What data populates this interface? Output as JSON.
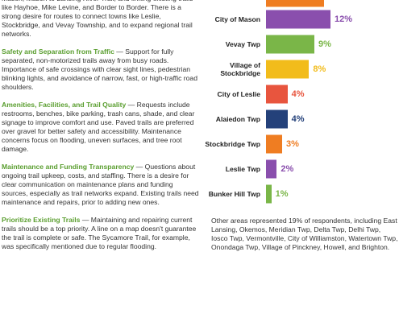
{
  "document": {
    "intro": "Mason, Mason to Lansing River Trail, and linking existing trails like Hayhoe, Mike Levine, and Border to Border. There is a strong desire for routes to connect towns like Leslie, Stockbridge, and Vevay Township, and to expand regional trail networks.",
    "sections": [
      {
        "heading": "Safety and Separation from Traffic",
        "body": " — Support for fully separated, non-motorized trails away from busy roads. Importance of safe crossings with clear sight lines, pedestrian blinking lights, and avoidance of narrow, fast, or high-traffic road shoulders."
      },
      {
        "heading": "Amenities, Facilities, and Trail Quality",
        "body": " — Requests include restrooms, benches, bike parking, trash cans, shade, and clear signage to improve comfort and use. Paved trails are preferred over gravel for better safety and accessibility. Maintenance concerns focus on flooding, uneven surfaces, and tree root damage."
      },
      {
        "heading": "Maintenance and Funding Transparency",
        "body": " — Questions about ongoing trail upkeep, costs, and staffing. There is a desire for clear communication on maintenance plans and funding sources, especially as trail networks expand. Existing trails need maintenance and repairs, prior to adding new ones."
      },
      {
        "heading": "Prioritize Existing Trails",
        "body": " — Maintaining and repairing current trails should be a top priority. A line on a map doesn't guarantee the trail is complete or safe. The Sycamore Trail, for example, was specifically mentioned due to regular flooding."
      }
    ]
  },
  "chart_data": {
    "type": "bar",
    "orientation": "horizontal",
    "categories": [
      "City of Mason",
      "Vevay Twp",
      "Village of Stockbridge",
      "City of Leslie",
      "Alaiedon Twp",
      "Stockbridge Twp",
      "Leslie Twp",
      "Bunker Hill Twp"
    ],
    "values": [
      12,
      9,
      8,
      4,
      4,
      3,
      2,
      1
    ],
    "value_labels": [
      "12%",
      "9%",
      "8%",
      "4%",
      "4%",
      "3%",
      "2%",
      "1%"
    ],
    "colors": [
      "#8a4fad",
      "#7ab648",
      "#f2bc1b",
      "#e8553e",
      "#24417a",
      "#ef7d22",
      "#8a4fad",
      "#7ab648"
    ],
    "note": "Other areas represented 19% of respondents, including East Lansing, Okemos, Meridian Twp, Delta Twp, Delhi Twp, Iosco Twp, Vermontville, City of Williamston, Watertown Twp, Onondaga Twp, Village of Pinckney, Howell, and Brighton."
  }
}
